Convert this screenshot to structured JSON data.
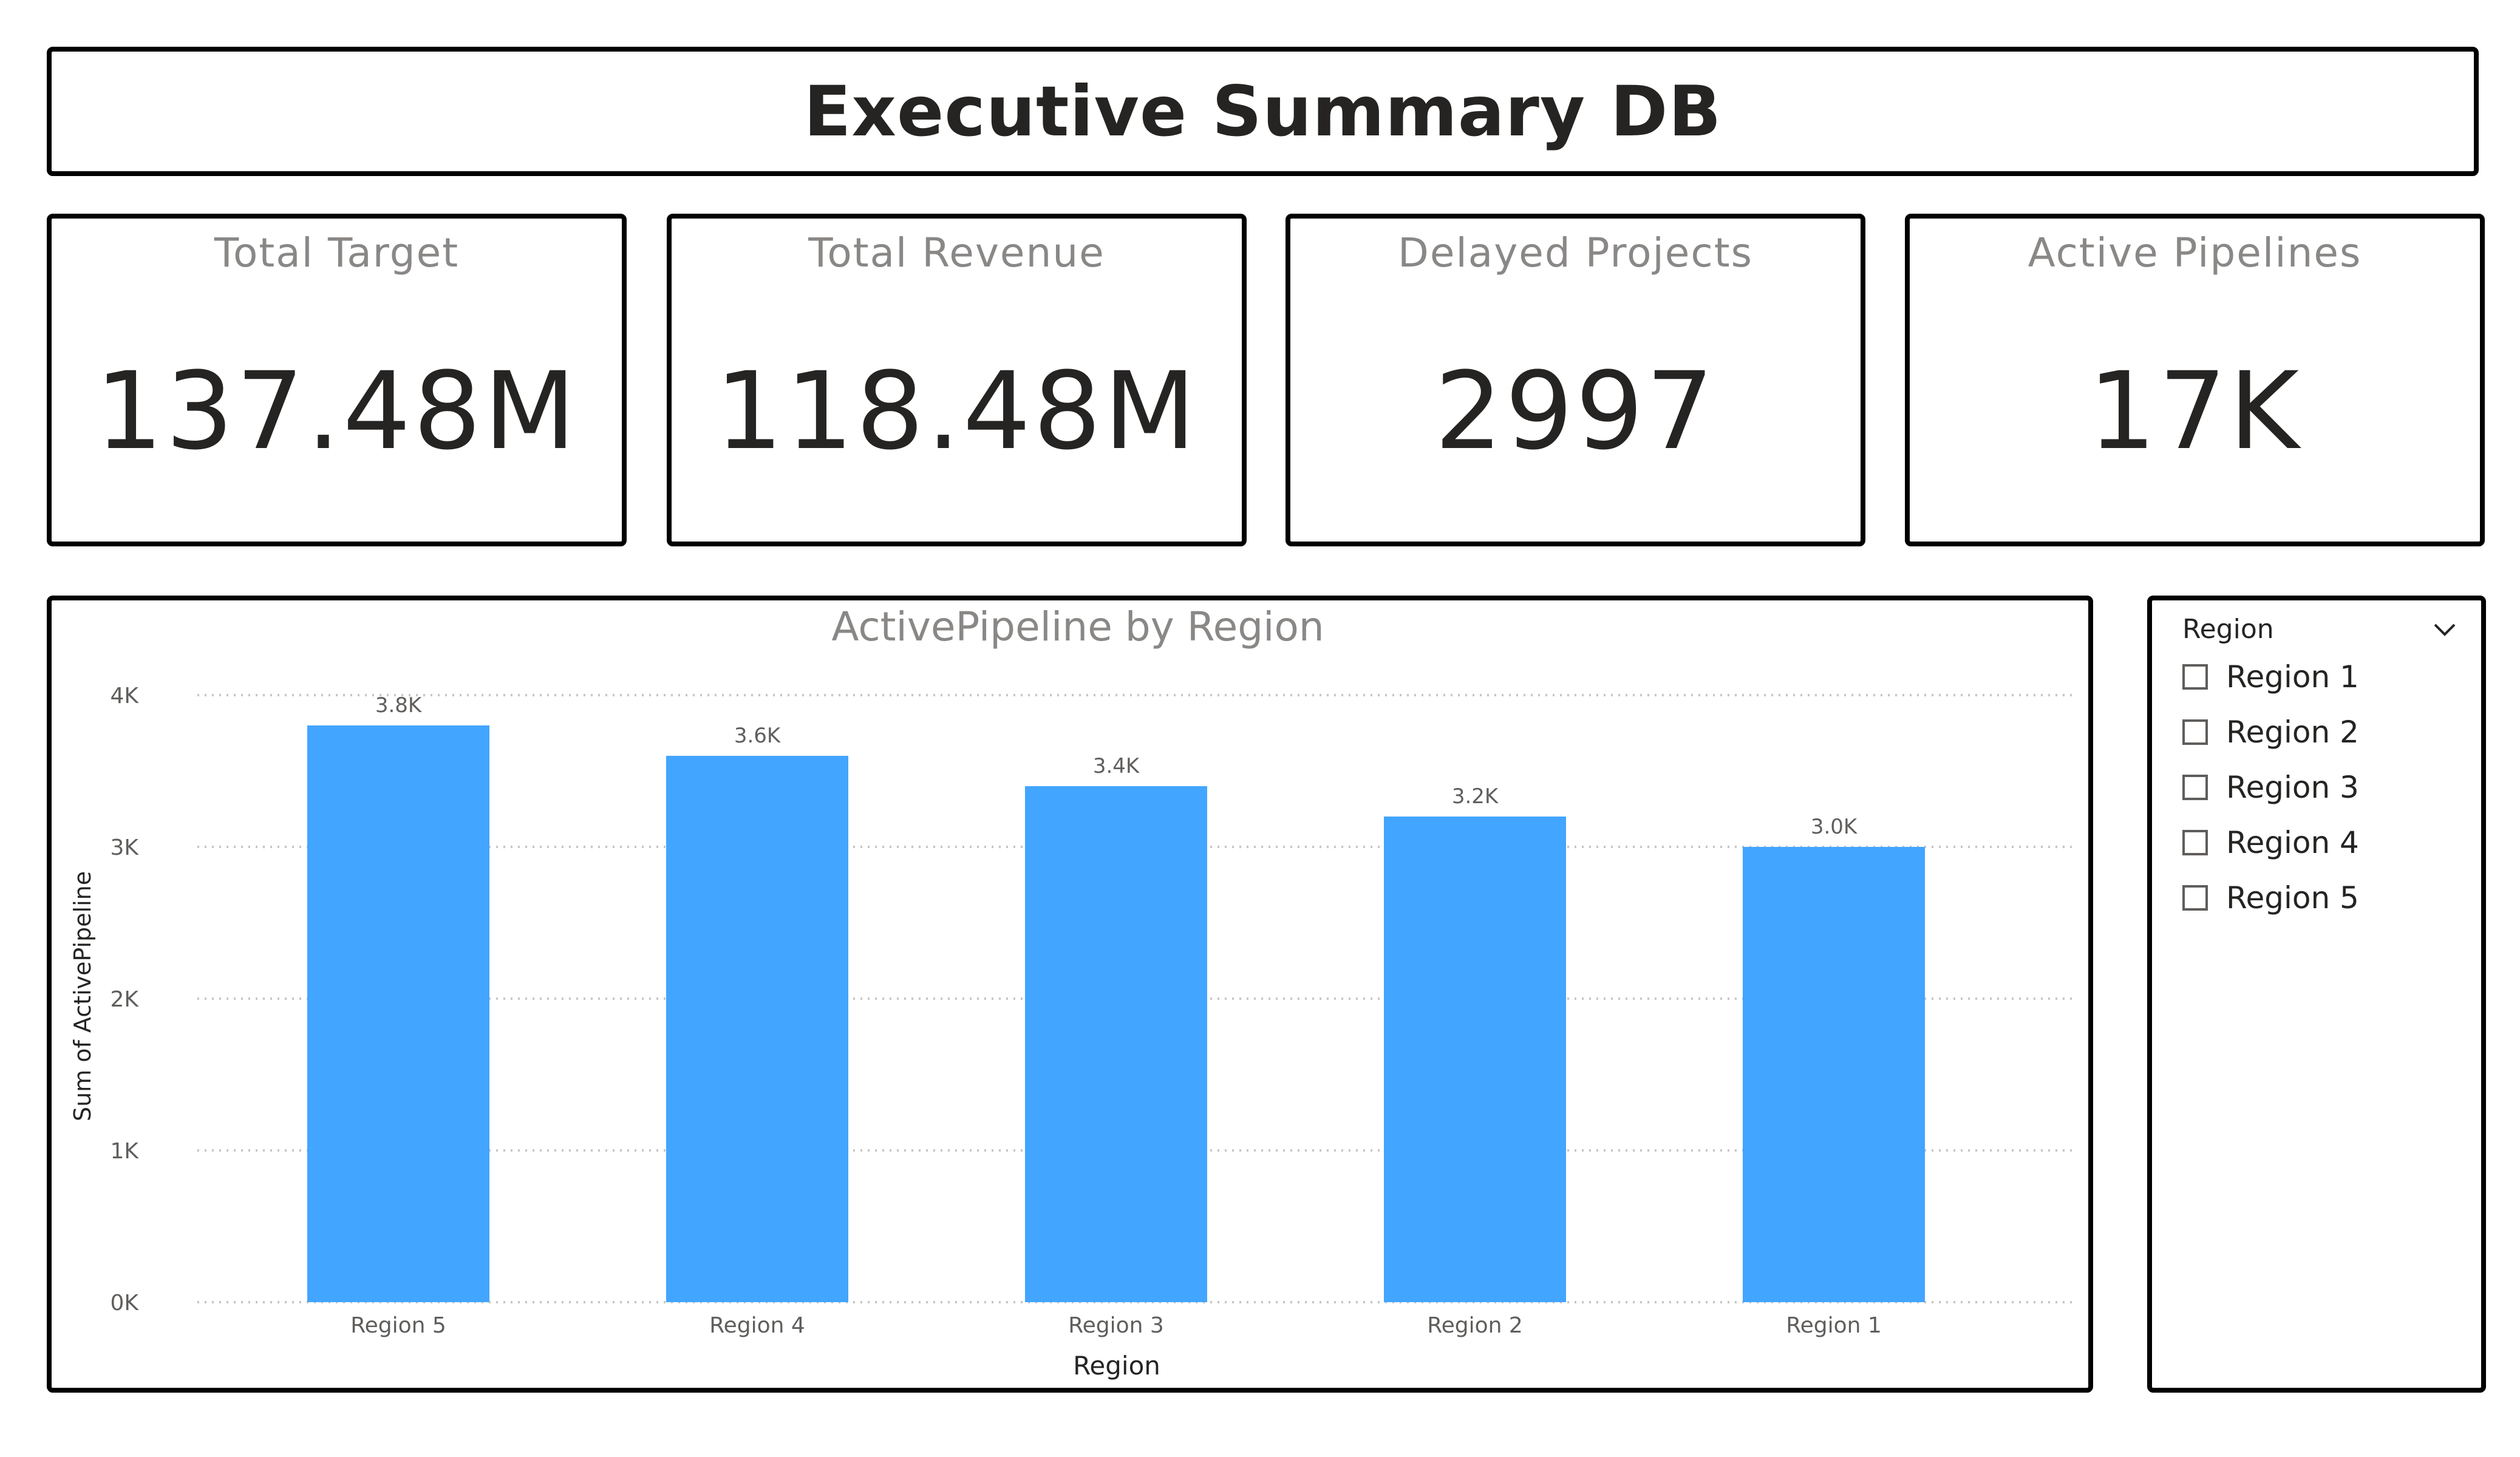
{
  "title": "Executive Summary DB",
  "kpis": [
    {
      "label": "Total Target",
      "value": "137.48M"
    },
    {
      "label": "Total Revenue",
      "value": "118.48M"
    },
    {
      "label": "Delayed Projects",
      "value": "2997"
    },
    {
      "label": "Active Pipelines",
      "value": "17K"
    }
  ],
  "slicer": {
    "title": "Region",
    "items": [
      "Region 1",
      "Region 2",
      "Region 3",
      "Region 4",
      "Region 5"
    ]
  },
  "chart_data": {
    "type": "bar",
    "title": "ActivePipeline by Region",
    "xlabel": "Region",
    "ylabel": "Sum of ActivePipeline",
    "categories": [
      "Region 5",
      "Region 4",
      "Region 3",
      "Region 2",
      "Region 1"
    ],
    "values": [
      3800,
      3600,
      3400,
      3200,
      3000
    ],
    "data_labels": [
      "3.8K",
      "3.6K",
      "3.4K",
      "3.2K",
      "3.0K"
    ],
    "ylim": [
      0,
      4000
    ],
    "yticks": [
      0,
      1000,
      2000,
      3000,
      4000
    ],
    "ytick_labels": [
      "0K",
      "1K",
      "2K",
      "3K",
      "4K"
    ],
    "grid": true,
    "bar_color": "#42a5ff"
  },
  "colors": {
    "border": "#000000",
    "kpi_label": "#8a8886",
    "text": "#252423",
    "bar": "#42a5ff"
  }
}
